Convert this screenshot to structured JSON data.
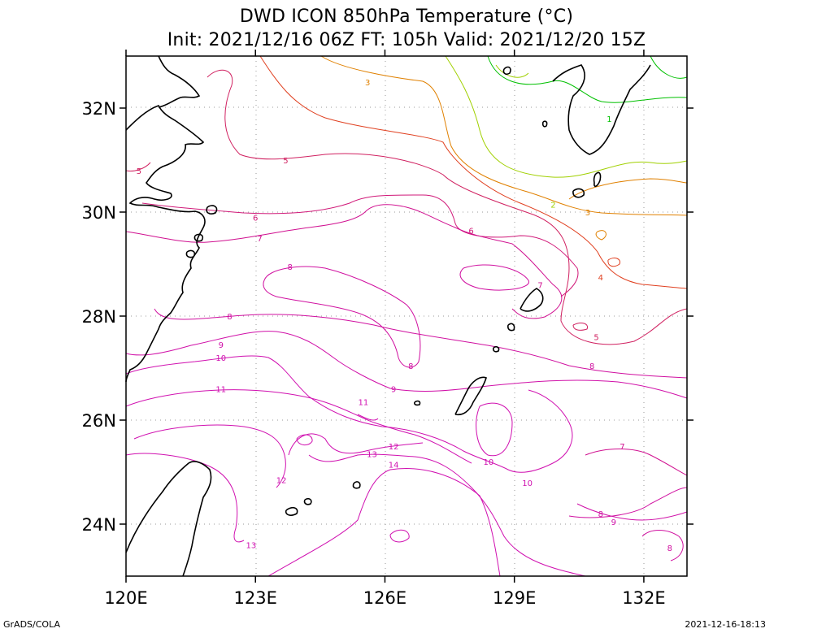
{
  "title": {
    "line1": "DWD ICON 850hPa Temperature (°C)",
    "line2": "Init: 2021/12/16 06Z  FT: 105h  Valid: 2021/12/20 15Z"
  },
  "axes": {
    "lat_labels": [
      {
        "lat": 32,
        "text": "32N"
      },
      {
        "lat": 30,
        "text": "30N"
      },
      {
        "lat": 28,
        "text": "28N"
      },
      {
        "lat": 26,
        "text": "26N"
      },
      {
        "lat": 24,
        "text": "24N"
      }
    ],
    "lon_labels": [
      {
        "lon": 120,
        "text": "120E"
      },
      {
        "lon": 123,
        "text": "123E"
      },
      {
        "lon": 126,
        "text": "126E"
      },
      {
        "lon": 129,
        "text": "129E"
      },
      {
        "lon": 132,
        "text": "132E"
      }
    ],
    "lon_range": [
      120,
      133
    ],
    "lat_range": [
      23,
      33
    ],
    "grid": "dotted"
  },
  "contour_colors": {
    "1": "#00c000",
    "2": "#a0d000",
    "3": "#e08000",
    "4": "#e04020",
    "5": "#d02060",
    "6": "#d01878",
    "7": "#d01090",
    "8": "#d010a0",
    "9": "#d010a8",
    "10": "#d010b0",
    "11": "#d010b0",
    "12": "#d010b0",
    "13": "#d010b0",
    "14": "#d010b0"
  },
  "contour_labels": [
    {
      "text": "3",
      "lon": 125.6,
      "lat": 32.5
    },
    {
      "text": "5",
      "lon": 120.3,
      "lat": 30.8
    },
    {
      "text": "5",
      "lon": 123.7,
      "lat": 31.0
    },
    {
      "text": "6",
      "lon": 123.0,
      "lat": 29.9
    },
    {
      "text": "7",
      "lon": 123.1,
      "lat": 29.5
    },
    {
      "text": "8",
      "lon": 123.8,
      "lat": 28.95
    },
    {
      "text": "8",
      "lon": 122.4,
      "lat": 28.0
    },
    {
      "text": "9",
      "lon": 122.2,
      "lat": 27.45
    },
    {
      "text": "10",
      "lon": 122.2,
      "lat": 27.2
    },
    {
      "text": "11",
      "lon": 122.2,
      "lat": 26.6
    },
    {
      "text": "11",
      "lon": 125.5,
      "lat": 26.35
    },
    {
      "text": "12",
      "lon": 123.6,
      "lat": 24.85
    },
    {
      "text": "12",
      "lon": 126.2,
      "lat": 25.5
    },
    {
      "text": "13",
      "lon": 125.7,
      "lat": 25.35
    },
    {
      "text": "13",
      "lon": 122.9,
      "lat": 23.6
    },
    {
      "text": "14",
      "lon": 126.2,
      "lat": 25.15
    },
    {
      "text": "9",
      "lon": 126.2,
      "lat": 26.6
    },
    {
      "text": "8",
      "lon": 126.6,
      "lat": 27.05
    },
    {
      "text": "6",
      "lon": 128.0,
      "lat": 29.65
    },
    {
      "text": "7",
      "lon": 129.6,
      "lat": 28.6
    },
    {
      "text": "8",
      "lon": 130.8,
      "lat": 27.05
    },
    {
      "text": "5",
      "lon": 130.9,
      "lat": 27.6
    },
    {
      "text": "4",
      "lon": 131.0,
      "lat": 28.75
    },
    {
      "text": "3",
      "lon": 130.7,
      "lat": 30.0
    },
    {
      "text": "2",
      "lon": 129.9,
      "lat": 30.15
    },
    {
      "text": "1",
      "lon": 131.2,
      "lat": 31.8
    },
    {
      "text": "10",
      "lon": 128.4,
      "lat": 25.2
    },
    {
      "text": "10",
      "lon": 129.3,
      "lat": 24.8
    },
    {
      "text": "7",
      "lon": 131.5,
      "lat": 25.5
    },
    {
      "text": "8",
      "lon": 131.0,
      "lat": 24.2
    },
    {
      "text": "9",
      "lon": 131.3,
      "lat": 24.05
    },
    {
      "text": "8",
      "lon": 132.6,
      "lat": 23.55
    }
  ],
  "footer": {
    "left": "GrADS/COLA",
    "right": "2021-12-16-18:13"
  }
}
